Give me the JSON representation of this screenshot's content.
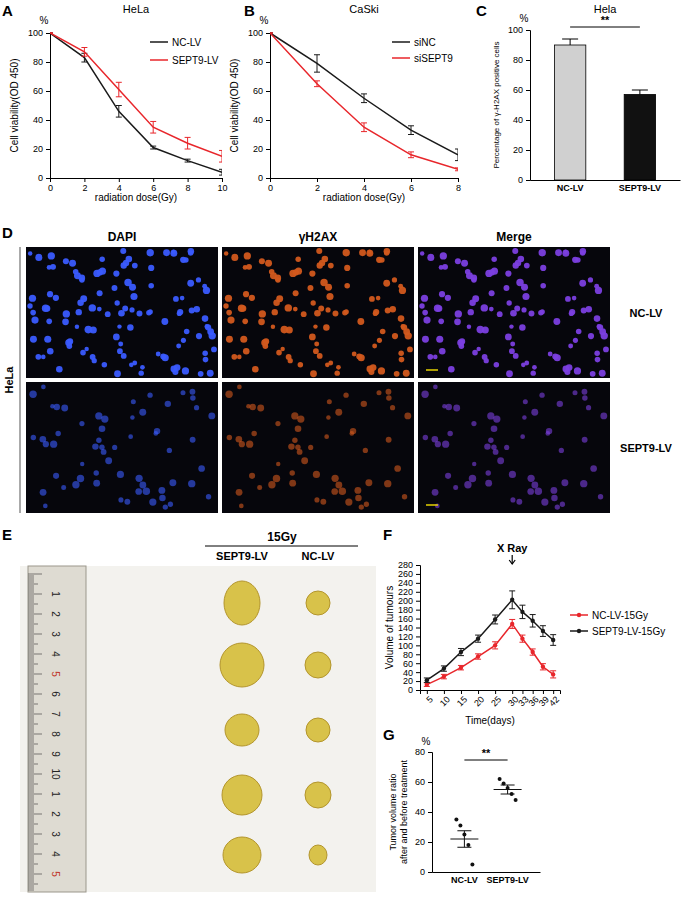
{
  "panels": [
    "A",
    "B",
    "C",
    "D",
    "E",
    "F",
    "G"
  ],
  "chart_data": [
    {
      "type": "line",
      "title": "HeLa",
      "annotations": [
        "%"
      ],
      "x_label": "radiation dose(Gy)",
      "y_label": "Cell viability(OD 450)",
      "x": [
        0,
        2,
        4,
        6,
        8,
        10
      ],
      "xlim": [
        0,
        10
      ],
      "xticks": [
        0,
        2,
        4,
        6,
        8,
        10
      ],
      "ylim": [
        0,
        100
      ],
      "yticks": [
        0,
        20,
        40,
        60,
        80,
        100
      ],
      "legend": "upper right",
      "series": [
        {
          "name": "NC-LV",
          "color": "#1a1a1a",
          "values": [
            100,
            83,
            46,
            21,
            12,
            4
          ],
          "errors": [
            0,
            3,
            4,
            1,
            1,
            2
          ]
        },
        {
          "name": "SEPT9-LV",
          "color": "#e8262b",
          "values": [
            100,
            87,
            61,
            35,
            24,
            15
          ],
          "errors": [
            0,
            3,
            5,
            4,
            4,
            4
          ]
        }
      ]
    },
    {
      "type": "line",
      "title": "CaSki",
      "annotations": [
        "%"
      ],
      "x_label": "radiation dose(Gy)",
      "y_label": "Cell viability(OD 450)",
      "x": [
        0,
        2,
        4,
        6,
        8
      ],
      "xlim": [
        0,
        8
      ],
      "xticks": [
        0,
        2,
        4,
        6,
        8
      ],
      "ylim": [
        0,
        100
      ],
      "yticks": [
        0,
        20,
        40,
        60,
        80,
        100
      ],
      "legend": "upper right",
      "series": [
        {
          "name": "siNC",
          "color": "#1a1a1a",
          "values": [
            100,
            79,
            55,
            33,
            16
          ],
          "errors": [
            0,
            6,
            3,
            3,
            4
          ]
        },
        {
          "name": "siSEPT9",
          "color": "#e8262b",
          "values": [
            100,
            65,
            35,
            16,
            6
          ],
          "errors": [
            0,
            2,
            3,
            2,
            1
          ]
        }
      ]
    },
    {
      "type": "bar",
      "title": "Hela",
      "annotations": [
        "%",
        "**"
      ],
      "y_label": "Percentage of γ-H2AX positive cells",
      "categories": [
        "NC-LV",
        "SEPT9-LV"
      ],
      "values": [
        90,
        57
      ],
      "errors": [
        4,
        3
      ],
      "colors": [
        "#d0d0d0",
        "#111111"
      ],
      "ylim": [
        0,
        100
      ],
      "yticks": [
        0,
        20,
        40,
        60,
        80,
        100
      ]
    },
    {
      "type": "line",
      "annotations": [
        {
          "text": "X Ray",
          "x": 30
        }
      ],
      "x_label": "Time(days)",
      "y_label": "Volume of tumours",
      "x": [
        5,
        10,
        15,
        20,
        25,
        30,
        33,
        36,
        39,
        42
      ],
      "xlim": [
        3,
        44
      ],
      "xticks": [
        5,
        10,
        15,
        20,
        25,
        30,
        33,
        36,
        39,
        42
      ],
      "ylim": [
        0,
        280
      ],
      "yticks": [
        0,
        20,
        40,
        60,
        80,
        100,
        120,
        140,
        160,
        180,
        200,
        220,
        240,
        260,
        280
      ],
      "legend": "right",
      "series": [
        {
          "name": "NC-LV-15Gy",
          "color": "#e8262b",
          "marker": "circle",
          "values": [
            12,
            30,
            50,
            75,
            100,
            148,
            115,
            85,
            52,
            35
          ],
          "errors": [
            4,
            5,
            5,
            6,
            8,
            10,
            8,
            7,
            7,
            8
          ]
        },
        {
          "name": "SEPT9-LV-15Gy",
          "color": "#1a1a1a",
          "marker": "circle",
          "values": [
            22,
            48,
            85,
            115,
            158,
            202,
            175,
            155,
            132,
            112
          ],
          "errors": [
            5,
            6,
            8,
            8,
            10,
            20,
            15,
            14,
            12,
            12
          ]
        }
      ]
    },
    {
      "type": "dot",
      "annotations": [
        "%",
        "**"
      ],
      "y_label": [
        "Tumor volume ratio",
        "after and before treatment"
      ],
      "categories": [
        "NC-LV",
        "SEPT9-LV"
      ],
      "points": [
        [
          35,
          31,
          25,
          18,
          5
        ],
        [
          62,
          59,
          56,
          52,
          48
        ]
      ],
      "values": [
        22,
        55
      ],
      "errors": [
        5.5,
        3
      ],
      "color": "#111111",
      "ylim": [
        0,
        80
      ],
      "yticks": [
        0,
        20,
        40,
        60,
        80
      ]
    }
  ],
  "microscopy": {
    "side_label": "HeLa",
    "columns": [
      "DAPI",
      "γH2AX",
      "Merge"
    ],
    "rows": [
      "NC-LV",
      "SEPT9-LV"
    ]
  },
  "photo": {
    "dose": "15Gy",
    "columns": [
      "SEPT9-LV",
      "NC-LV"
    ],
    "ruler_labels": [
      "1",
      "2",
      "3",
      "4",
      "5",
      "6",
      "7",
      "8",
      "9",
      "10",
      "1",
      "2",
      "3",
      "4",
      "5"
    ]
  }
}
